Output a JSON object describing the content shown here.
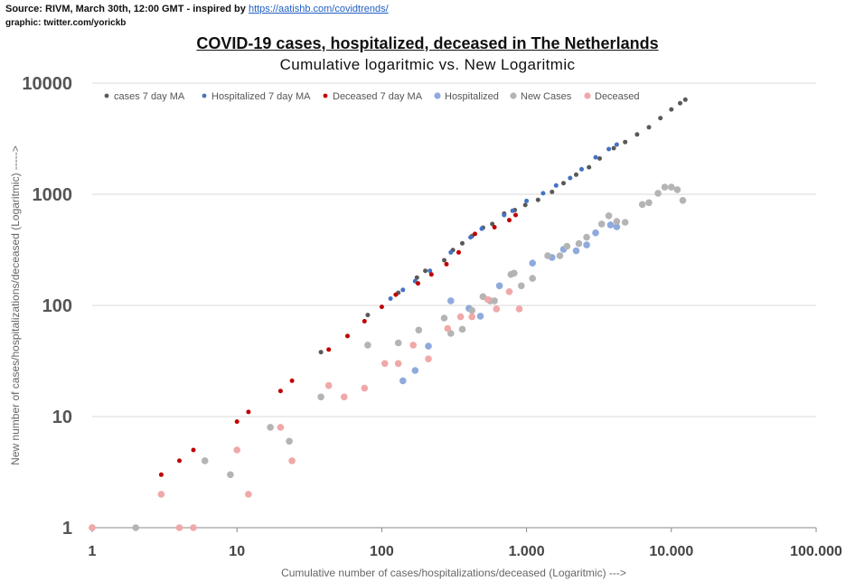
{
  "header": {
    "source_prefix": "Source: RIVM, March 30th, 12:00 GMT  - inspired by ",
    "source_link": "https://aatishb.com/covidtrends/",
    "graphic_credit": "graphic: twitter.com/yorickb"
  },
  "colors": {
    "cases_ma": "#595959",
    "hosp_ma": "#4472c4",
    "deceased_ma": "#c00000",
    "hosp": "#8faadc",
    "new_cases": "#b4b4b4",
    "deceased": "#f0a8a8",
    "grid": "#d9d9d9"
  },
  "chart_data": {
    "type": "scatter",
    "title": "COVID-19 cases, hospitalized, deceased in The Netherlands",
    "subtitle": "Cumulative logaritmic vs. New Logaritmic",
    "xlabel": "Cumulative number of cases/hospitalizations/deceased (Logaritmic) --->",
    "ylabel": "New  number of cases/hospitalizations/deceased (Logaritmic)  ----->",
    "xscale": "log",
    "yscale": "log",
    "xlim": [
      1,
      100000
    ],
    "ylim": [
      1,
      10000
    ],
    "xticks": [
      {
        "value": 1,
        "label": "1"
      },
      {
        "value": 10,
        "label": "10"
      },
      {
        "value": 100,
        "label": "100"
      },
      {
        "value": 1000,
        "label": "1.000"
      },
      {
        "value": 10000,
        "label": "10.000"
      },
      {
        "value": 100000,
        "label": "100.000"
      }
    ],
    "yticks": [
      {
        "value": 1,
        "label": "1"
      },
      {
        "value": 10,
        "label": "10"
      },
      {
        "value": 100,
        "label": "100"
      },
      {
        "value": 1000,
        "label": "1000"
      },
      {
        "value": 10000,
        "label": "10000"
      }
    ],
    "legend_position": "top",
    "series": [
      {
        "name": "cases 7 day MA",
        "color_key": "cases_ma",
        "marker": "small",
        "points": [
          [
            38,
            38
          ],
          [
            80,
            82
          ],
          [
            130,
            130
          ],
          [
            175,
            178
          ],
          [
            200,
            205
          ],
          [
            270,
            255
          ],
          [
            310,
            315
          ],
          [
            360,
            362
          ],
          [
            420,
            420
          ],
          [
            500,
            500
          ],
          [
            580,
            540
          ],
          [
            700,
            670
          ],
          [
            830,
            720
          ],
          [
            980,
            800
          ],
          [
            1200,
            890
          ],
          [
            1500,
            1050
          ],
          [
            1800,
            1260
          ],
          [
            2200,
            1500
          ],
          [
            2700,
            1750
          ],
          [
            3200,
            2100
          ],
          [
            4000,
            2600
          ],
          [
            4800,
            2950
          ],
          [
            5800,
            3450
          ],
          [
            7000,
            4000
          ],
          [
            8400,
            4850
          ],
          [
            10000,
            5800
          ],
          [
            11500,
            6600
          ],
          [
            12500,
            7100
          ]
        ]
      },
      {
        "name": "Hospitalized 7 day MA",
        "color_key": "hosp_ma",
        "marker": "small",
        "points": [
          [
            115,
            115
          ],
          [
            140,
            138
          ],
          [
            170,
            165
          ],
          [
            215,
            205
          ],
          [
            300,
            300
          ],
          [
            410,
            410
          ],
          [
            490,
            490
          ],
          [
            700,
            650
          ],
          [
            800,
            710
          ],
          [
            1000,
            870
          ],
          [
            1300,
            1020
          ],
          [
            1600,
            1200
          ],
          [
            2000,
            1400
          ],
          [
            2400,
            1680
          ],
          [
            3000,
            2150
          ],
          [
            3700,
            2550
          ],
          [
            4200,
            2800
          ]
        ]
      },
      {
        "name": "Deceased  7 day MA",
        "color_key": "deceased_ma",
        "marker": "small",
        "points": [
          [
            3,
            3
          ],
          [
            4,
            4
          ],
          [
            5,
            5
          ],
          [
            10,
            9
          ],
          [
            12,
            11
          ],
          [
            20,
            17
          ],
          [
            24,
            21
          ],
          [
            43,
            40
          ],
          [
            58,
            53
          ],
          [
            76,
            72
          ],
          [
            100,
            97
          ],
          [
            125,
            125
          ],
          [
            178,
            158
          ],
          [
            220,
            190
          ],
          [
            280,
            235
          ],
          [
            340,
            300
          ],
          [
            440,
            440
          ],
          [
            600,
            505
          ],
          [
            760,
            585
          ],
          [
            840,
            650
          ]
        ]
      },
      {
        "name": "Hospitalized",
        "color_key": "hosp",
        "marker": "large",
        "points": [
          [
            140,
            21
          ],
          [
            170,
            26
          ],
          [
            210,
            43
          ],
          [
            300,
            110
          ],
          [
            400,
            94
          ],
          [
            480,
            80
          ],
          [
            650,
            150
          ],
          [
            1100,
            240
          ],
          [
            1500,
            270
          ],
          [
            1800,
            320
          ],
          [
            2200,
            310
          ],
          [
            2600,
            350
          ],
          [
            3000,
            450
          ],
          [
            3800,
            530
          ],
          [
            4200,
            510
          ]
        ]
      },
      {
        "name": "New Cases",
        "color_key": "new_cases",
        "marker": "large",
        "points": [
          [
            1,
            1
          ],
          [
            2,
            1
          ],
          [
            6,
            4
          ],
          [
            9,
            3
          ],
          [
            17,
            8
          ],
          [
            23,
            6
          ],
          [
            38,
            15
          ],
          [
            80,
            44
          ],
          [
            130,
            46
          ],
          [
            180,
            60
          ],
          [
            270,
            77
          ],
          [
            300,
            56
          ],
          [
            360,
            61
          ],
          [
            420,
            90
          ],
          [
            500,
            120
          ],
          [
            560,
            110
          ],
          [
            600,
            110
          ],
          [
            780,
            190
          ],
          [
            820,
            195
          ],
          [
            920,
            150
          ],
          [
            1100,
            175
          ],
          [
            1400,
            280
          ],
          [
            1700,
            280
          ],
          [
            1900,
            340
          ],
          [
            2300,
            360
          ],
          [
            2600,
            410
          ],
          [
            3300,
            540
          ],
          [
            3700,
            640
          ],
          [
            4200,
            570
          ],
          [
            4800,
            560
          ],
          [
            6300,
            810
          ],
          [
            7000,
            840
          ],
          [
            8100,
            1020
          ],
          [
            9000,
            1160
          ],
          [
            10000,
            1160
          ],
          [
            11000,
            1100
          ],
          [
            12000,
            880
          ]
        ]
      },
      {
        "name": "Deceased",
        "color_key": "deceased",
        "marker": "large",
        "points": [
          [
            1,
            1
          ],
          [
            3,
            2
          ],
          [
            4,
            1
          ],
          [
            5,
            1
          ],
          [
            10,
            5
          ],
          [
            12,
            2
          ],
          [
            20,
            8
          ],
          [
            24,
            4
          ],
          [
            43,
            19
          ],
          [
            55,
            15
          ],
          [
            76,
            18
          ],
          [
            105,
            30
          ],
          [
            130,
            30
          ],
          [
            165,
            44
          ],
          [
            210,
            33
          ],
          [
            285,
            62
          ],
          [
            350,
            79
          ],
          [
            420,
            79
          ],
          [
            540,
            113
          ],
          [
            620,
            93
          ],
          [
            760,
            133
          ],
          [
            890,
            93
          ]
        ]
      }
    ]
  }
}
